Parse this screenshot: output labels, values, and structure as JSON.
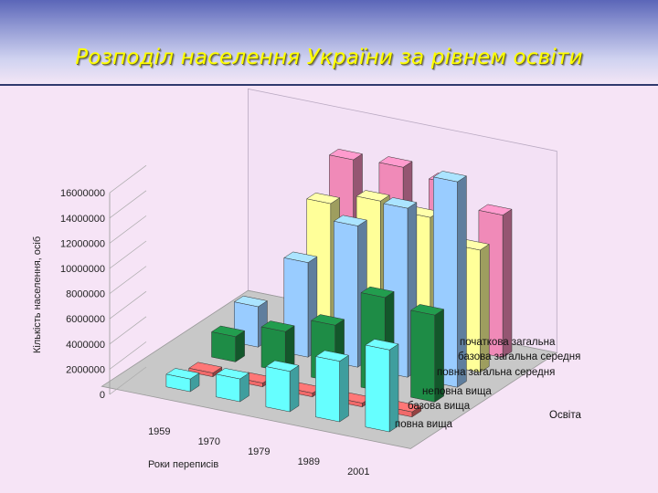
{
  "title": "Розподіл населення України за рівнем освіти",
  "chart_data": {
    "type": "bar",
    "title": "",
    "xlabel": "Роки переписів",
    "ylabel": "Кількість населення, осіб",
    "zlabel": "Освіта",
    "ylim": [
      0,
      16000000
    ],
    "yticks": [
      0,
      2000000,
      4000000,
      6000000,
      8000000,
      10000000,
      12000000,
      14000000,
      16000000
    ],
    "categories": [
      "1959",
      "1970",
      "1979",
      "1989",
      "2001"
    ],
    "series": [
      {
        "name": "початкова загальна",
        "color": "#f08ab8",
        "values": [
          null,
          13300000,
          13500000,
          13000000,
          11300000
        ]
      },
      {
        "name": "базова загальна середня",
        "color": "#ffff99",
        "values": [
          null,
          11000000,
          12000000,
          11500000,
          9700000
        ]
      },
      {
        "name": "повна загальна середня",
        "color": "#99ccff",
        "values": [
          3200000,
          7500000,
          11200000,
          13400000,
          16300000
        ]
      },
      {
        "name": "неповна вища",
        "color": "#1e8c46",
        "values": [
          2000000,
          3200000,
          4500000,
          7500000,
          6900000
        ]
      },
      {
        "name": "базова вища",
        "color": "#f06a6a",
        "values": [
          300000,
          300000,
          300000,
          300000,
          400000
        ]
      },
      {
        "name": "повна вища",
        "color": "#66ffff",
        "values": [
          1000000,
          1800000,
          3200000,
          4800000,
          6500000
        ]
      }
    ]
  }
}
